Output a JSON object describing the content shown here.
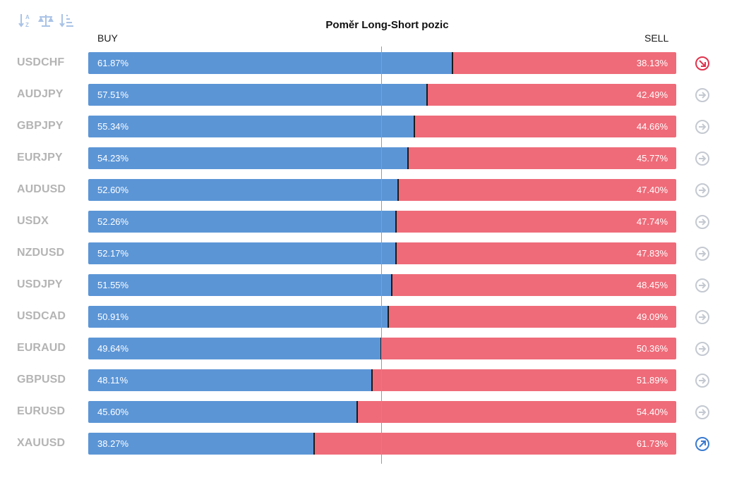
{
  "title": "Poměr Long-Short pozic",
  "buy_label": "BUY",
  "sell_label": "SELL",
  "toolbar": [
    {
      "icon": "sort-alpha-icon"
    },
    {
      "icon": "balance-icon"
    },
    {
      "icon": "sort-desc-icon"
    }
  ],
  "colors": {
    "buy": "#5b95d6",
    "sell": "#ef6b79",
    "neutral_icon": "#c4c9d1",
    "sell_signal": "#e0334d",
    "buy_signal": "#3a7bd0"
  },
  "rows": [
    {
      "symbol": "USDCHF",
      "buy": "61.87%",
      "sell": "38.13%",
      "icon": "arrow-down-right-icon"
    },
    {
      "symbol": "AUDJPY",
      "buy": "57.51%",
      "sell": "42.49%",
      "icon": "arrow-right-icon"
    },
    {
      "symbol": "GBPJPY",
      "buy": "55.34%",
      "sell": "44.66%",
      "icon": "arrow-right-icon"
    },
    {
      "symbol": "EURJPY",
      "buy": "54.23%",
      "sell": "45.77%",
      "icon": "arrow-right-icon"
    },
    {
      "symbol": "AUDUSD",
      "buy": "52.60%",
      "sell": "47.40%",
      "icon": "arrow-right-icon"
    },
    {
      "symbol": "USDX",
      "buy": "52.26%",
      "sell": "47.74%",
      "icon": "arrow-right-icon"
    },
    {
      "symbol": "NZDUSD",
      "buy": "52.17%",
      "sell": "47.83%",
      "icon": "arrow-right-icon"
    },
    {
      "symbol": "USDJPY",
      "buy": "51.55%",
      "sell": "48.45%",
      "icon": "arrow-right-icon"
    },
    {
      "symbol": "USDCAD",
      "buy": "50.91%",
      "sell": "49.09%",
      "icon": "arrow-right-icon"
    },
    {
      "symbol": "EURAUD",
      "buy": "49.64%",
      "sell": "50.36%",
      "icon": "arrow-right-icon"
    },
    {
      "symbol": "GBPUSD",
      "buy": "48.11%",
      "sell": "51.89%",
      "icon": "arrow-right-icon"
    },
    {
      "symbol": "EURUSD",
      "buy": "45.60%",
      "sell": "54.40%",
      "icon": "arrow-right-icon"
    },
    {
      "symbol": "XAUUSD",
      "buy": "38.27%",
      "sell": "61.73%",
      "icon": "arrow-up-right-icon"
    }
  ],
  "chart_data": {
    "type": "bar",
    "title": "Poměr Long-Short pozic",
    "stacked": true,
    "orientation": "horizontal",
    "categories": [
      "USDCHF",
      "AUDJPY",
      "GBPJPY",
      "EURJPY",
      "AUDUSD",
      "USDX",
      "NZDUSD",
      "USDJPY",
      "USDCAD",
      "EURAUD",
      "GBPUSD",
      "EURUSD",
      "XAUUSD"
    ],
    "series": [
      {
        "name": "BUY",
        "values": [
          61.87,
          57.51,
          55.34,
          54.23,
          52.6,
          52.26,
          52.17,
          51.55,
          50.91,
          49.64,
          48.11,
          45.6,
          38.27
        ]
      },
      {
        "name": "SELL",
        "values": [
          38.13,
          42.49,
          44.66,
          45.77,
          47.4,
          47.74,
          47.83,
          48.45,
          49.09,
          50.36,
          51.89,
          54.4,
          61.73
        ]
      }
    ],
    "xlim": [
      0,
      100
    ],
    "reference_line": 50
  }
}
